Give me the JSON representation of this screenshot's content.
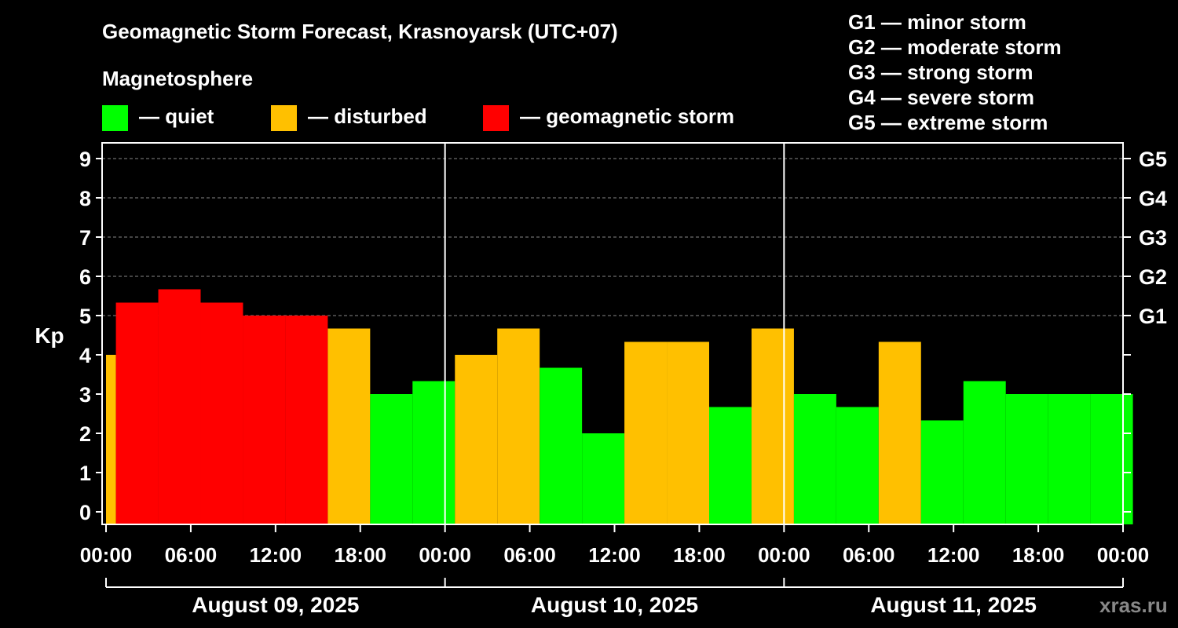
{
  "chart_data": {
    "type": "bar",
    "title": "Geomagnetic Storm Forecast, Krasnoyarsk (UTC+07)",
    "ylabel": "Kp",
    "ylim": [
      0,
      9
    ],
    "yticks": [
      "0",
      "1",
      "2",
      "3",
      "4",
      "5",
      "6",
      "7",
      "8",
      "9"
    ],
    "grid": true,
    "legend": {
      "title": "Magnetosphere",
      "items": [
        {
          "label": "— quiet",
          "color": "#00ff00"
        },
        {
          "label": "— disturbed",
          "color": "#ffc000"
        },
        {
          "label": "— geomagnetic storm",
          "color": "#ff0000"
        }
      ]
    },
    "storm_levels": [
      {
        "label": "G5",
        "kp": 9
      },
      {
        "label": "G4",
        "kp": 8
      },
      {
        "label": "G3",
        "kp": 7
      },
      {
        "label": "G2",
        "kp": 6
      },
      {
        "label": "G1",
        "kp": 5
      }
    ],
    "storm_legend": [
      "G1 — minor storm",
      "G2 — moderate storm",
      "G3 — strong storm",
      "G4 — severe storm",
      "G5 — extreme storm"
    ],
    "x_tick_labels": [
      "00:00",
      "06:00",
      "12:00",
      "18:00",
      "00:00",
      "06:00",
      "12:00",
      "18:00",
      "00:00",
      "06:00",
      "12:00",
      "18:00",
      "00:00"
    ],
    "days": [
      "August 09, 2025",
      "August 10, 2025",
      "August 11, 2025"
    ],
    "values": [
      4.0,
      5.33,
      5.67,
      5.33,
      5.0,
      5.0,
      4.67,
      3.0,
      3.33,
      4.0,
      4.67,
      3.67,
      2.0,
      4.33,
      4.33,
      2.67,
      4.67,
      3.0,
      2.67,
      4.33,
      2.33,
      3.33,
      3.0,
      3.0,
      3.0
    ],
    "colors": {
      "quiet": "#00ff00",
      "disturbed": "#ffc000",
      "storm": "#ff0000",
      "background": "#000000",
      "axis": "#ffffff"
    }
  },
  "watermark": "xras.ru"
}
